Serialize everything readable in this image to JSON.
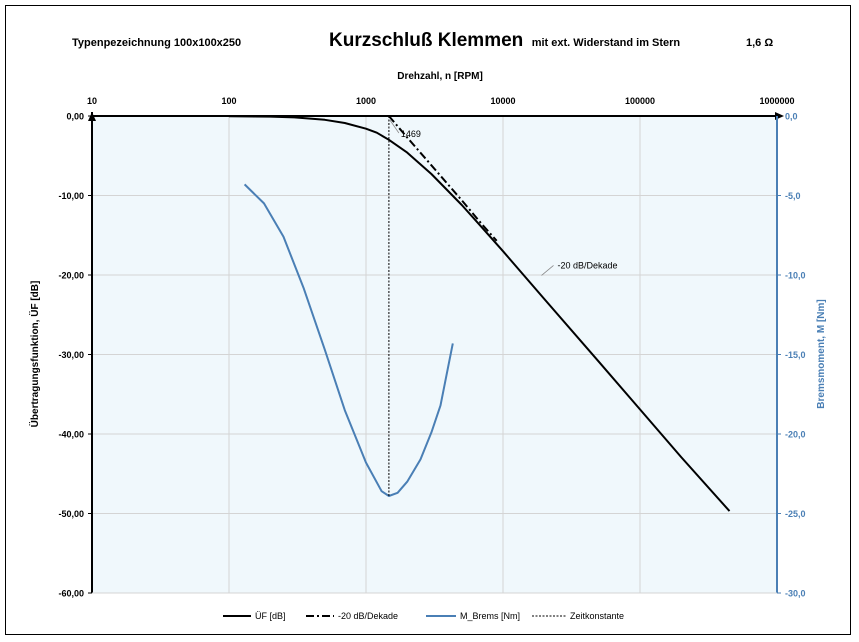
{
  "chart_data": {
    "type": "line",
    "header": {
      "left": "Typenpezeichnung 100x100x250",
      "title_main": "Kurzschluß Klemmen",
      "title_sub": "mit ext. Widerstand im Stern",
      "right": "1,6  Ω"
    },
    "x_axis": {
      "label": "Drehzahl,  n [RPM]",
      "scale": "log",
      "range": [
        10,
        1000000
      ],
      "ticks": [
        10,
        100,
        1000,
        10000,
        100000,
        1000000
      ],
      "tick_labels": [
        "10",
        "100",
        "1000",
        "10000",
        "100000",
        "1000000"
      ],
      "position": "top"
    },
    "y_left": {
      "label": "Übertragungsfunktion,  ÜF [dB]",
      "range": [
        -60,
        0
      ],
      "ticks": [
        0,
        -10,
        -20,
        -30,
        -40,
        -50,
        -60
      ],
      "tick_labels": [
        "0,00",
        "-10,00",
        "-20,00",
        "-30,00",
        "-40,00",
        "-50,00",
        "-60,00"
      ]
    },
    "y_right": {
      "label": "Bremsmoment,  M [Nm]",
      "range": [
        -30,
        0
      ],
      "ticks": [
        0,
        -5,
        -10,
        -15,
        -20,
        -25,
        -30
      ],
      "tick_labels": [
        "0,0",
        "-5,0",
        "-10,0",
        "-15,0",
        "-20,0",
        "-25,0",
        "-30,0"
      ],
      "color": "#4a7fb5"
    },
    "corner_frequency": 1469,
    "corner_label": "1469",
    "slope_label": "-20 dB/Dekade",
    "series": [
      {
        "name": "ÜF [dB]",
        "axis": "left",
        "color": "#000000",
        "style": "solid",
        "x": [
          100,
          200,
          300,
          500,
          700,
          1000,
          1200,
          1469,
          2000,
          3000,
          5000,
          7000,
          10000,
          20000,
          50000,
          100000,
          200000,
          450000
        ],
        "y": [
          -0.02,
          -0.08,
          -0.18,
          -0.48,
          -0.88,
          -1.6,
          -2.1,
          -3.0,
          -4.6,
          -7.3,
          -11.2,
          -14.0,
          -17.0,
          -23.0,
          -30.9,
          -36.9,
          -42.9,
          -49.7
        ]
      },
      {
        "name": "-20 dB/Dekade",
        "axis": "left",
        "color": "#000000",
        "style": "dashdot",
        "x": [
          1469,
          2000,
          3000,
          5000,
          7000,
          9000
        ],
        "y": [
          0,
          -2.7,
          -6.2,
          -10.6,
          -13.6,
          -15.7
        ]
      },
      {
        "name": "M_Brems [Nm]",
        "axis": "right",
        "color": "#4a7fb5",
        "style": "solid",
        "x": [
          130,
          180,
          250,
          350,
          500,
          700,
          1000,
          1300,
          1469,
          1700,
          2000,
          2500,
          3000,
          3500,
          4300
        ],
        "y": [
          -4.3,
          -5.5,
          -7.6,
          -10.8,
          -14.7,
          -18.5,
          -21.8,
          -23.6,
          -23.9,
          -23.7,
          -23.0,
          -21.6,
          -19.9,
          -18.2,
          -14.3
        ]
      },
      {
        "name": "Zeitkonstante",
        "axis": "left",
        "color": "#000000",
        "style": "dotted",
        "x": [
          1469,
          1469
        ],
        "y": [
          0,
          -47.8
        ]
      }
    ],
    "legend_position": "bottom",
    "grid": true,
    "plot_background": "#f0f8fc"
  }
}
